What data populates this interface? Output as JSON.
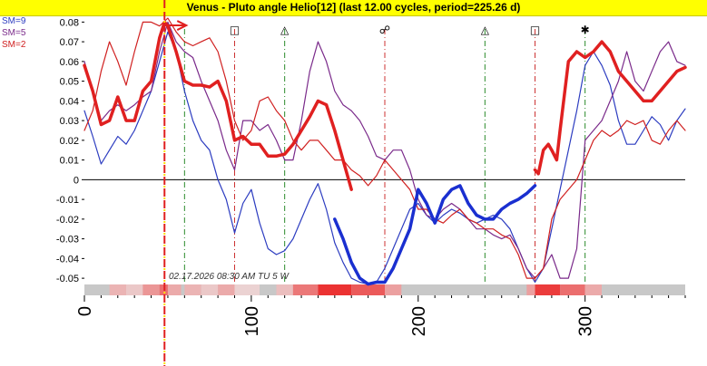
{
  "title": "Venus - Pluto angle Helio[12]  (last 12.00 cycles, period=225.26 d)",
  "legend": [
    {
      "label": "SM=9",
      "color": "#2c3cc0"
    },
    {
      "label": "SM=5",
      "color": "#7a2a8a"
    },
    {
      "label": "SM=2",
      "color": "#d02020"
    }
  ],
  "cursor_label": "02.17.2026  08:30 AM TU  5 W",
  "colors": {
    "sm9": "#2c3cc0",
    "sm5": "#7a2a8a",
    "sm2": "#d02020",
    "bold_red": "#e02020",
    "bold_blue": "#1a2fd0",
    "cursor": "#e02020",
    "cursor_dots": "#ffe000",
    "aspect_red": "#cc3333",
    "aspect_green": "#2a8a2a",
    "band_base": "#c8c8c8"
  },
  "chart_data": {
    "type": "line",
    "title": "Venus - Pluto angle Helio[12]  (last 12.00 cycles, period=225.26 d)",
    "xlim": [
      0,
      360
    ],
    "ylim": [
      -0.055,
      0.082
    ],
    "x_ticks": [
      0,
      100,
      200,
      300
    ],
    "y_ticks": [
      0.08,
      0.07,
      0.06,
      0.05,
      0.04,
      0.03,
      0.02,
      0.01,
      0,
      -0.01,
      -0.02,
      -0.03,
      -0.04,
      -0.05
    ],
    "y_tick_labels": [
      "0.08",
      "0.07",
      "0.06",
      "0.05",
      "0.04",
      "0.03",
      "0.02",
      "0.01",
      "0",
      "-0.01",
      "-0.02",
      "-0.03",
      "-0.04",
      "-0.05"
    ],
    "cursor_x": 48,
    "aspects": [
      {
        "x": 60,
        "glyph": "",
        "color": "green"
      },
      {
        "x": 90,
        "glyph": "□",
        "color": "red"
      },
      {
        "x": 120,
        "glyph": "△",
        "color": "green"
      },
      {
        "x": 180,
        "glyph": "☍",
        "color": "red"
      },
      {
        "x": 240,
        "glyph": "△",
        "color": "green"
      },
      {
        "x": 270,
        "glyph": "□",
        "color": "red"
      },
      {
        "x": 300,
        "glyph": "✱",
        "color": "green"
      }
    ],
    "series": [
      {
        "name": "SM=9",
        "style": "thin-blue",
        "x": [
          0,
          5,
          10,
          15,
          20,
          25,
          30,
          35,
          40,
          45,
          50,
          55,
          60,
          65,
          70,
          75,
          80,
          85,
          90,
          95,
          100,
          105,
          110,
          115,
          120,
          125,
          130,
          135,
          140,
          145,
          150,
          155,
          160,
          165,
          170,
          175,
          180,
          185,
          190,
          195,
          200,
          205,
          210,
          215,
          220,
          225,
          230,
          235,
          240,
          245,
          250,
          255,
          260,
          265,
          270,
          275,
          280,
          285,
          290,
          295,
          300,
          305,
          310,
          315,
          320,
          325,
          330,
          335,
          340,
          345,
          350,
          355,
          360
        ],
        "y": [
          0.035,
          0.022,
          0.008,
          0.015,
          0.022,
          0.018,
          0.025,
          0.035,
          0.045,
          0.06,
          0.075,
          0.065,
          0.045,
          0.03,
          0.02,
          0.015,
          0.0,
          -0.01,
          -0.027,
          -0.012,
          -0.005,
          -0.022,
          -0.035,
          -0.038,
          -0.036,
          -0.03,
          -0.02,
          -0.01,
          -0.002,
          -0.015,
          -0.032,
          -0.042,
          -0.05,
          -0.052,
          -0.053,
          -0.052,
          -0.045,
          -0.035,
          -0.025,
          -0.015,
          -0.012,
          -0.018,
          -0.022,
          -0.018,
          -0.015,
          -0.017,
          -0.02,
          -0.022,
          -0.02,
          -0.018,
          -0.02,
          -0.025,
          -0.035,
          -0.045,
          -0.052,
          -0.045,
          -0.025,
          -0.005,
          0.015,
          0.035,
          0.058,
          0.065,
          0.058,
          0.048,
          0.03,
          0.018,
          0.018,
          0.025,
          0.032,
          0.028,
          0.02,
          0.03,
          0.036
        ]
      },
      {
        "name": "SM=5",
        "style": "thin-purple",
        "x": [
          0,
          5,
          10,
          15,
          20,
          25,
          30,
          35,
          40,
          45,
          50,
          55,
          60,
          65,
          70,
          75,
          80,
          85,
          90,
          95,
          100,
          105,
          110,
          115,
          120,
          125,
          130,
          135,
          140,
          145,
          150,
          155,
          160,
          165,
          170,
          175,
          180,
          185,
          190,
          195,
          200,
          205,
          210,
          215,
          220,
          225,
          230,
          235,
          240,
          245,
          250,
          255,
          260,
          265,
          270,
          275,
          280,
          285,
          290,
          295,
          300,
          305,
          310,
          315,
          320,
          325,
          330,
          335,
          340,
          345,
          350,
          355,
          360
        ],
        "y": [
          0.06,
          0.045,
          0.03,
          0.035,
          0.038,
          0.035,
          0.038,
          0.042,
          0.045,
          0.065,
          0.08,
          0.07,
          0.065,
          0.062,
          0.05,
          0.04,
          0.03,
          0.015,
          0.005,
          0.03,
          0.03,
          0.025,
          0.028,
          0.02,
          0.01,
          0.01,
          0.03,
          0.055,
          0.07,
          0.06,
          0.045,
          0.038,
          0.035,
          0.03,
          0.022,
          0.012,
          0.01,
          0.015,
          0.015,
          0.005,
          -0.01,
          -0.018,
          -0.02,
          -0.015,
          -0.012,
          -0.015,
          -0.02,
          -0.025,
          -0.025,
          -0.028,
          -0.03,
          -0.028,
          -0.035,
          -0.045,
          -0.05,
          -0.045,
          -0.038,
          -0.05,
          -0.05,
          -0.035,
          0.02,
          0.025,
          0.03,
          0.04,
          0.05,
          0.065,
          0.05,
          0.045,
          0.055,
          0.065,
          0.07,
          0.06,
          0.058
        ]
      },
      {
        "name": "SM=2",
        "style": "thin-red",
        "x": [
          0,
          5,
          10,
          15,
          20,
          25,
          30,
          35,
          40,
          45,
          50,
          55,
          60,
          65,
          70,
          75,
          80,
          85,
          90,
          95,
          100,
          105,
          110,
          115,
          120,
          125,
          130,
          135,
          140,
          145,
          150,
          155,
          160,
          165,
          170,
          175,
          180,
          185,
          190,
          195,
          200,
          205,
          210,
          215,
          220,
          225,
          230,
          235,
          240,
          245,
          250,
          255,
          260,
          265,
          270,
          275,
          280,
          285,
          290,
          295,
          300,
          305,
          310,
          315,
          320,
          325,
          330,
          335,
          340,
          345,
          350,
          355,
          360
        ],
        "y": [
          0.025,
          0.035,
          0.055,
          0.07,
          0.06,
          0.048,
          0.065,
          0.08,
          0.08,
          0.078,
          0.082,
          0.075,
          0.07,
          0.068,
          0.07,
          0.072,
          0.065,
          0.05,
          0.03,
          0.02,
          0.025,
          0.04,
          0.042,
          0.035,
          0.03,
          0.02,
          0.015,
          0.02,
          0.02,
          0.015,
          0.01,
          0.01,
          0.005,
          0.002,
          -0.003,
          0.002,
          0.01,
          0.005,
          0.0,
          -0.005,
          -0.015,
          -0.015,
          -0.02,
          -0.022,
          -0.018,
          -0.015,
          -0.02,
          -0.022,
          -0.025,
          -0.025,
          -0.028,
          -0.03,
          -0.038,
          -0.05,
          -0.05,
          -0.045,
          -0.02,
          -0.01,
          -0.005,
          0.0,
          0.01,
          0.02,
          0.025,
          0.022,
          0.025,
          0.03,
          0.028,
          0.03,
          0.02,
          0.018,
          0.025,
          0.03,
          0.025
        ]
      },
      {
        "name": "",
        "style": "bold-red",
        "x": [
          0,
          5,
          10,
          15,
          20,
          25,
          30,
          35,
          40,
          45,
          48,
          50,
          55,
          60,
          65,
          70,
          75,
          80,
          85,
          90,
          95,
          100,
          105,
          110,
          115,
          120,
          125,
          130,
          135,
          140,
          145,
          150,
          155,
          160
        ],
        "y": [
          0.058,
          0.045,
          0.028,
          0.03,
          0.042,
          0.03,
          0.03,
          0.045,
          0.05,
          0.072,
          0.08,
          0.078,
          0.065,
          0.05,
          0.048,
          0.048,
          0.047,
          0.05,
          0.04,
          0.02,
          0.022,
          0.018,
          0.018,
          0.012,
          0.012,
          0.013,
          0.018,
          0.025,
          0.032,
          0.04,
          0.038,
          0.025,
          0.01,
          -0.005
        ]
      },
      {
        "name": "",
        "style": "bold-blue",
        "x": [
          150,
          155,
          160,
          165,
          170,
          175,
          180,
          185,
          190,
          195,
          200,
          205,
          210,
          215,
          220,
          225,
          230,
          235,
          240,
          245,
          250,
          255,
          260,
          265,
          270
        ],
        "y": [
          -0.02,
          -0.03,
          -0.042,
          -0.05,
          -0.053,
          -0.052,
          -0.052,
          -0.045,
          -0.035,
          -0.025,
          -0.005,
          -0.012,
          -0.022,
          -0.01,
          -0.005,
          -0.003,
          -0.012,
          -0.018,
          -0.02,
          -0.02,
          -0.015,
          -0.012,
          -0.01,
          -0.007,
          -0.003
        ]
      },
      {
        "name": "",
        "style": "bold-red",
        "x": [
          270,
          272,
          275,
          278,
          280,
          283,
          285,
          290,
          295,
          300,
          305,
          310,
          315,
          320,
          325,
          330,
          335,
          340,
          345,
          350,
          355,
          360
        ],
        "y": [
          0.005,
          0.003,
          0.015,
          0.018,
          0.015,
          0.01,
          0.025,
          0.06,
          0.065,
          0.062,
          0.065,
          0.07,
          0.065,
          0.055,
          0.05,
          0.045,
          0.04,
          0.04,
          0.045,
          0.05,
          0.055,
          0.057
        ]
      }
    ],
    "intensity_band": [
      {
        "from": 0,
        "to": 15,
        "level": 0.0
      },
      {
        "from": 15,
        "to": 25,
        "level": 0.25
      },
      {
        "from": 25,
        "to": 35,
        "level": 0.15
      },
      {
        "from": 35,
        "to": 45,
        "level": 0.4
      },
      {
        "from": 45,
        "to": 50,
        "level": 0.6
      },
      {
        "from": 50,
        "to": 58,
        "level": 0.3
      },
      {
        "from": 58,
        "to": 60,
        "level": 0.0
      },
      {
        "from": 60,
        "to": 70,
        "level": 0.25
      },
      {
        "from": 70,
        "to": 80,
        "level": 0.15
      },
      {
        "from": 80,
        "to": 90,
        "level": 0.3
      },
      {
        "from": 90,
        "to": 105,
        "level": 0.1
      },
      {
        "from": 105,
        "to": 115,
        "level": 0.0
      },
      {
        "from": 115,
        "to": 125,
        "level": 0.2
      },
      {
        "from": 125,
        "to": 140,
        "level": 0.55
      },
      {
        "from": 140,
        "to": 160,
        "level": 0.9
      },
      {
        "from": 160,
        "to": 180,
        "level": 0.7
      },
      {
        "from": 180,
        "to": 190,
        "level": 0.35
      },
      {
        "from": 190,
        "to": 265,
        "level": 0.0
      },
      {
        "from": 265,
        "to": 270,
        "level": 0.35
      },
      {
        "from": 270,
        "to": 285,
        "level": 0.85
      },
      {
        "from": 285,
        "to": 300,
        "level": 0.6
      },
      {
        "from": 300,
        "to": 310,
        "level": 0.3
      },
      {
        "from": 310,
        "to": 360,
        "level": 0.0
      }
    ]
  }
}
